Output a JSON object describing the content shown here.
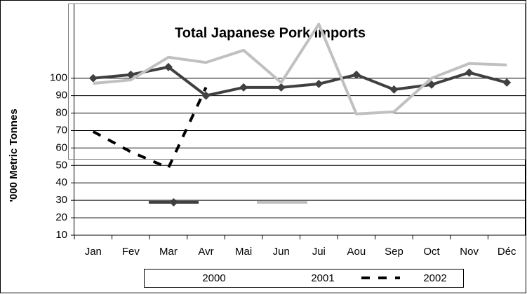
{
  "chart_data": {
    "type": "line",
    "title": "Total Japanese Pork Imports",
    "y_label": "'000 Metric Tonnes",
    "categories": [
      "Jan",
      "Fev",
      "Mar",
      "Avr",
      "Mai",
      "Jun",
      "Jui",
      "Aou",
      "Sep",
      "Oct",
      "Nov",
      "Déc"
    ],
    "series": [
      {
        "name": "2000",
        "color": "#404040",
        "marker": "diamond",
        "dash": false,
        "values": [
          100,
          102,
          106.4,
          90,
          94.7,
          94.7,
          96.7,
          102,
          93.5,
          96.3,
          103.2,
          97.5
        ]
      },
      {
        "name": "2001",
        "color": "#c0c0c0",
        "marker": null,
        "dash": false,
        "values": [
          97,
          99,
          112,
          109,
          116,
          97.5,
          131,
          79.5,
          80.7,
          100,
          108.4,
          107.6
        ]
      },
      {
        "name": "2002",
        "color": "#000000",
        "marker": null,
        "dash": true,
        "values": [
          69.4,
          57.8,
          48.6,
          94.7,
          null,
          null,
          null,
          null,
          null,
          null,
          null,
          null
        ]
      }
    ],
    "ylim": [
      10,
      140
    ],
    "yticks": [
      10,
      20,
      30,
      40,
      50,
      60,
      70,
      80,
      90,
      100
    ],
    "grid": true,
    "legend": "bottom"
  }
}
